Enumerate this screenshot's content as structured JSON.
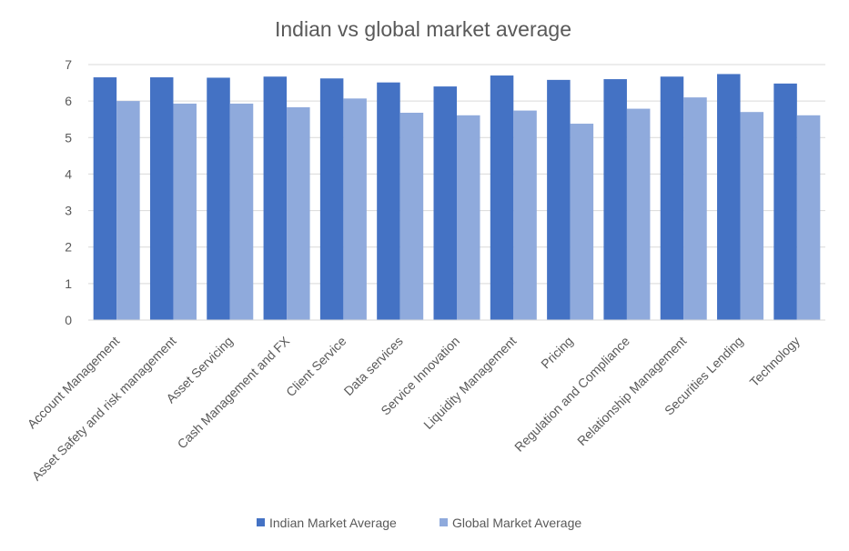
{
  "chart_data": {
    "type": "bar",
    "title": "Indian vs global market average",
    "categories": [
      "Account Management",
      "Asset Safety and risk management",
      "Asset Servicing",
      "Cash Management and FX",
      "Client Service",
      "Data services",
      "Service Innovation",
      "Liquidity Management",
      "Pricing",
      "Regulation and Compliance",
      "Relationship Management",
      "Securities Lending",
      "Technology"
    ],
    "series": [
      {
        "name": "Indian Market Average",
        "color": "#4472c4",
        "values": [
          6.65,
          6.65,
          6.64,
          6.67,
          6.62,
          6.51,
          6.4,
          6.7,
          6.58,
          6.6,
          6.67,
          6.74,
          6.48
        ]
      },
      {
        "name": "Global Market Average",
        "color": "#8faadc",
        "values": [
          6.0,
          5.93,
          5.93,
          5.83,
          6.07,
          5.68,
          5.61,
          5.74,
          5.38,
          5.79,
          6.1,
          5.7,
          5.61
        ]
      }
    ],
    "ylim": [
      0,
      7
    ],
    "yticks": [
      0,
      1,
      2,
      3,
      4,
      5,
      6,
      7
    ],
    "grid": true,
    "legend_position": "bottom"
  }
}
